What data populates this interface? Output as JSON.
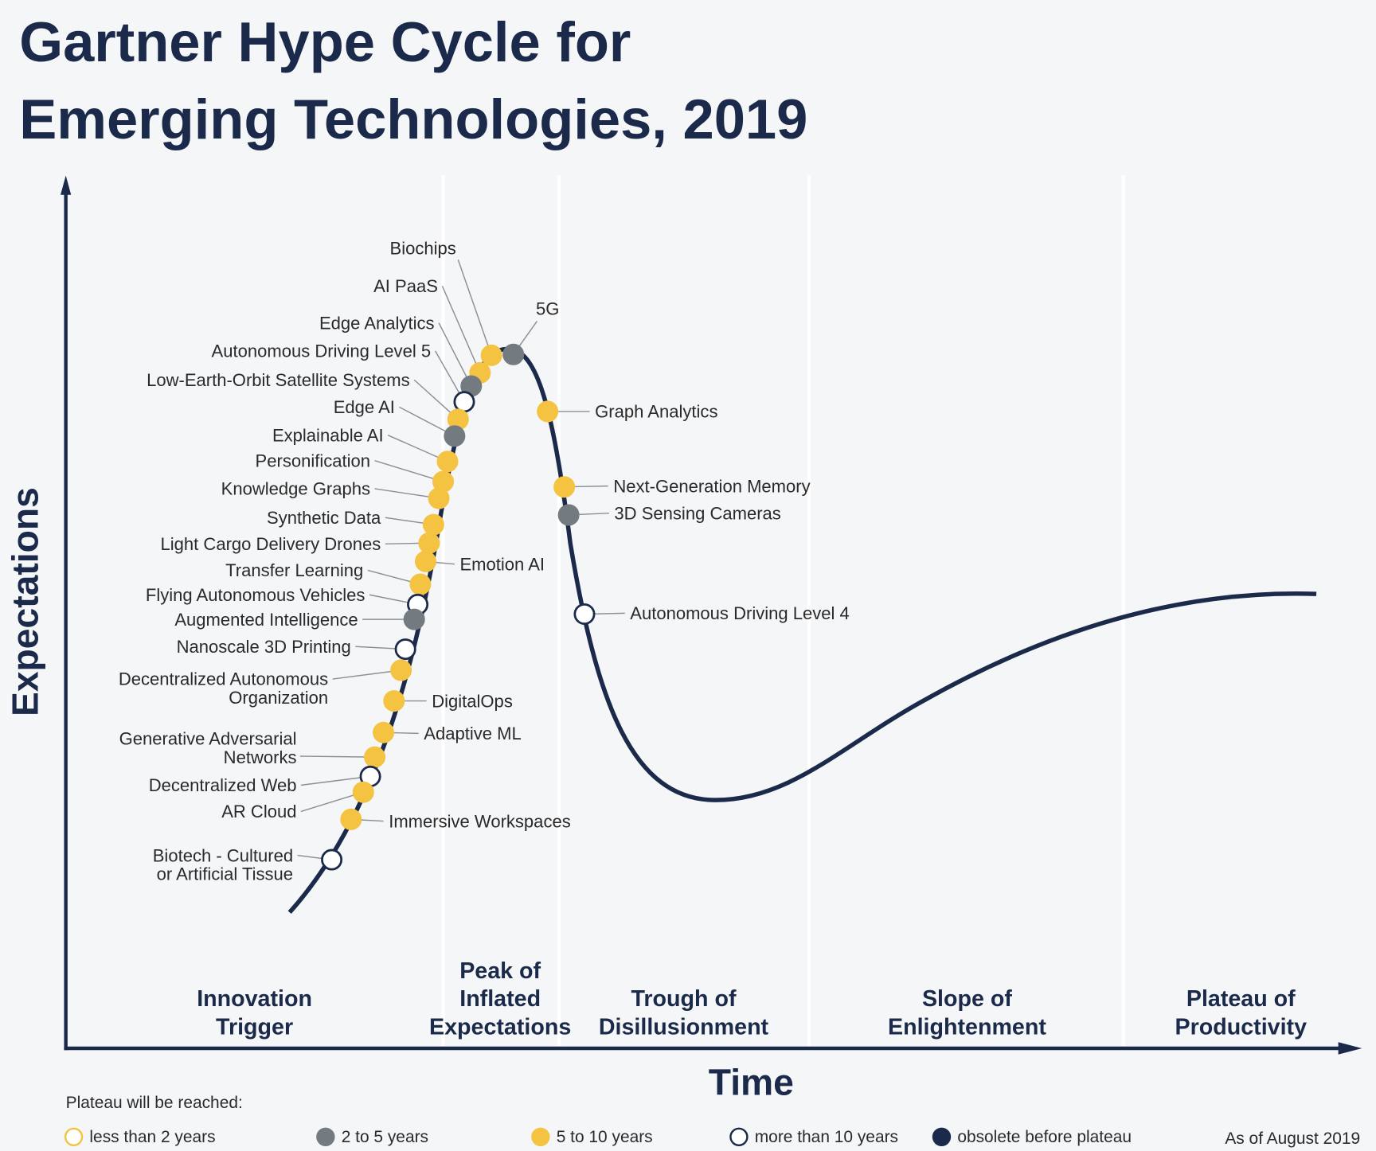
{
  "header": {
    "title": [
      "Gartner Hype Cycle for",
      "Emerging Technologies, 2019"
    ]
  },
  "axes": {
    "y": "Expectations",
    "x": "Time"
  },
  "phases": [
    [
      "Innovation",
      "Trigger"
    ],
    [
      "Peak of",
      "Inflated",
      "Expectations"
    ],
    [
      "Trough of",
      "Disillusionment"
    ],
    [
      "Slope of",
      "Enlightenment"
    ],
    [
      "Plateau of",
      "Productivity"
    ]
  ],
  "technologies": [
    {
      "label": [
        "Biochips"
      ],
      "group": 2
    },
    {
      "label": [
        "AI PaaS"
      ],
      "group": 2
    },
    {
      "label": [
        "Edge Analytics"
      ],
      "group": 1
    },
    {
      "label": [
        "Autonomous Driving Level 5"
      ],
      "group": 3
    },
    {
      "label": [
        "Low-Earth-Orbit Satellite Systems"
      ],
      "group": 2
    },
    {
      "label": [
        "5G"
      ],
      "group": 1
    },
    {
      "label": [
        "Edge AI"
      ],
      "group": 1
    },
    {
      "label": [
        "Explainable AI"
      ],
      "group": 2
    },
    {
      "label": [
        "Personification"
      ],
      "group": 2
    },
    {
      "label": [
        "Knowledge Graphs"
      ],
      "group": 2
    },
    {
      "label": [
        "Synthetic Data"
      ],
      "group": 2
    },
    {
      "label": [
        "Light Cargo Delivery Drones"
      ],
      "group": 2
    },
    {
      "label": [
        "Emotion AI"
      ],
      "group": 2
    },
    {
      "label": [
        "Transfer Learning"
      ],
      "group": 2
    },
    {
      "label": [
        "Flying Autonomous Vehicles"
      ],
      "group": 3
    },
    {
      "label": [
        "Augmented Intelligence"
      ],
      "group": 1
    },
    {
      "label": [
        "Nanoscale 3D Printing"
      ],
      "group": 3
    },
    {
      "label": [
        "Decentralized Autonomous",
        "Organization"
      ],
      "group": 2
    },
    {
      "label": [
        "DigitalOps"
      ],
      "group": 2
    },
    {
      "label": [
        "Adaptive ML"
      ],
      "group": 2
    },
    {
      "label": [
        "Generative Adversarial",
        "Networks"
      ],
      "group": 2
    },
    {
      "label": [
        "Decentralized Web"
      ],
      "group": 3
    },
    {
      "label": [
        "AR Cloud"
      ],
      "group": 2
    },
    {
      "label": [
        "Immersive Workspaces"
      ],
      "group": 2
    },
    {
      "label": [
        "Biotech - Cultured",
        "or Artificial Tissue"
      ],
      "group": 3
    },
    {
      "label": [
        "Graph Analytics"
      ],
      "group": 2
    },
    {
      "label": [
        "Next-Generation Memory"
      ],
      "group": 2
    },
    {
      "label": [
        "3D Sensing Cameras"
      ],
      "group": 1
    },
    {
      "label": [
        "Autonomous Driving Level 4"
      ],
      "group": 3
    }
  ],
  "legend": {
    "heading": "Plateau will be reached:",
    "items": [
      "less than 2 years",
      "2 to 5 years",
      "5 to 10 years",
      "more than 10 years",
      "obsolete before plateau"
    ],
    "note": "As of August 2019"
  }
}
